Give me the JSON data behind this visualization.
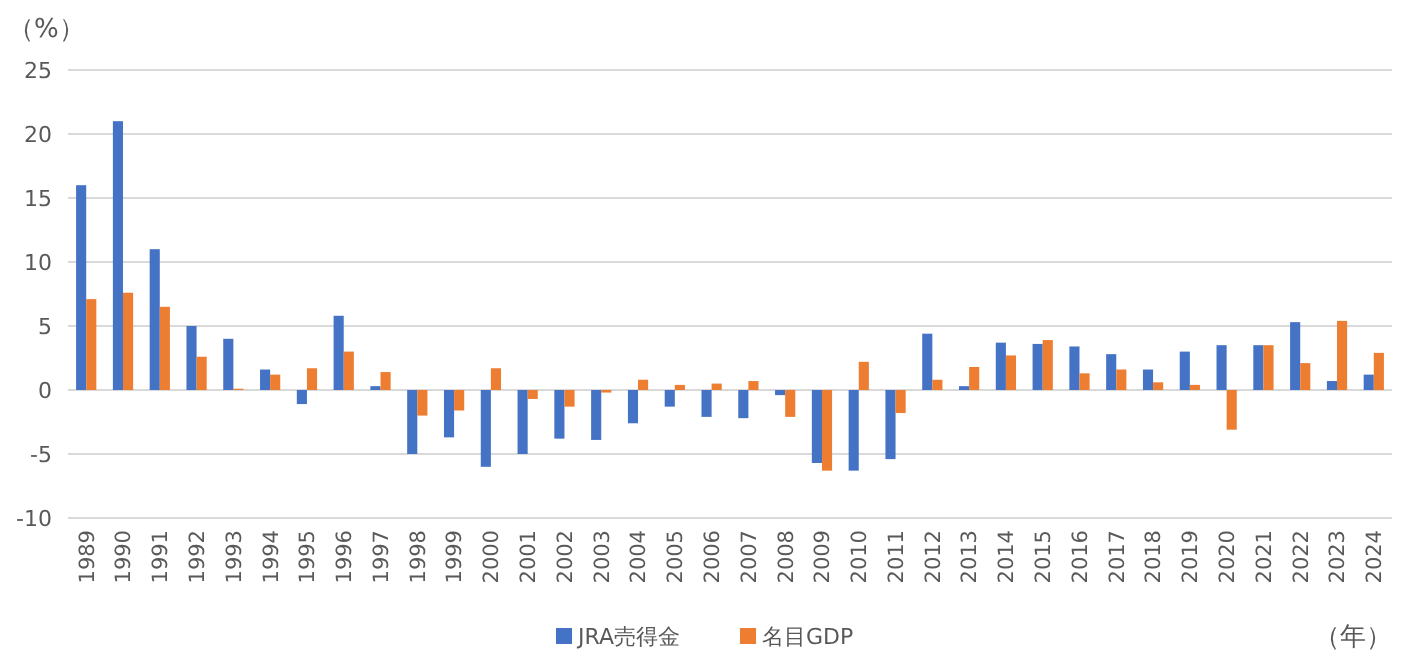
{
  "chart_data": {
    "type": "bar",
    "ylabel": "（%）",
    "xlabel": "（年）",
    "categories": [
      "1989",
      "1990",
      "1991",
      "1992",
      "1993",
      "1994",
      "1995",
      "1996",
      "1997",
      "1998",
      "1999",
      "2000",
      "2001",
      "2002",
      "2003",
      "2004",
      "2005",
      "2006",
      "2007",
      "2008",
      "2009",
      "2010",
      "2011",
      "2012",
      "2013",
      "2014",
      "2015",
      "2016",
      "2017",
      "2018",
      "2019",
      "2020",
      "2021",
      "2022",
      "2023",
      "2024"
    ],
    "series": [
      {
        "name": "JRA売得金",
        "color": "#4472c4",
        "values": [
          16,
          21,
          11,
          5,
          4,
          1.6,
          -1.1,
          5.8,
          0.3,
          -5,
          -3.7,
          -6,
          -5,
          -3.8,
          -3.9,
          -2.6,
          -1.3,
          -2.1,
          -2.2,
          -0.4,
          -5.7,
          -6.3,
          -5.4,
          4.4,
          0.3,
          3.7,
          3.6,
          3.4,
          2.8,
          1.6,
          3,
          3.5,
          3.5,
          5.3,
          0.7,
          1.2
        ]
      },
      {
        "name": "名目GDP",
        "color": "#ed7d31",
        "values": [
          7.1,
          7.6,
          6.5,
          2.6,
          0.1,
          1.2,
          1.7,
          3,
          1.4,
          -2,
          -1.6,
          1.7,
          -0.7,
          -1.3,
          -0.2,
          0.8,
          0.4,
          0.5,
          0.7,
          -2.1,
          -6.3,
          2.2,
          -1.8,
          0.8,
          1.8,
          2.7,
          3.9,
          1.3,
          1.6,
          0.6,
          0.4,
          -3.1,
          3.5,
          2.1,
          5.4,
          2.9
        ]
      }
    ],
    "ylim": [
      -10,
      25
    ],
    "yticks": [
      -10,
      -5,
      0,
      5,
      10,
      15,
      20,
      25
    ],
    "grid": "y",
    "legend": "bottom"
  }
}
